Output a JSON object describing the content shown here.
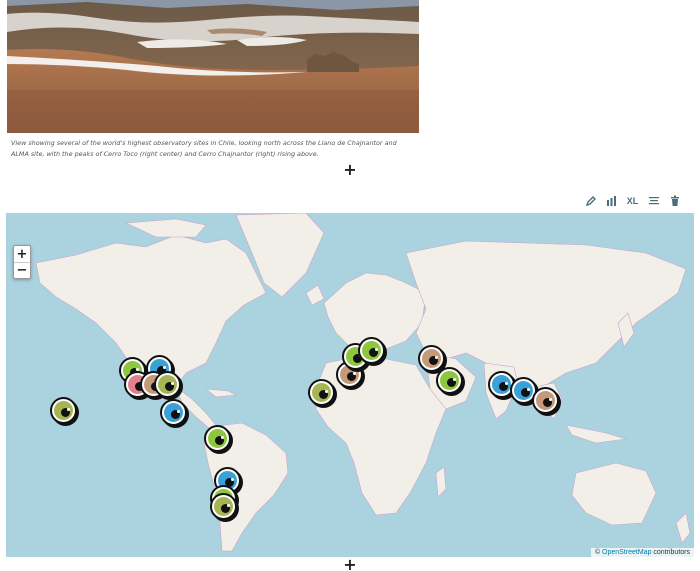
{
  "photo": {
    "caption": "View showing several of the world's highest observatory sites in Chile, looking north across the Llano de Chajnantor and ALMA site, with the peaks of Cerro Toco (right center) and Cerro Chajnantor (right) rising above."
  },
  "add_button_label": "+",
  "toolbar": {
    "tools": [
      {
        "name": "edit-icon",
        "label": ""
      },
      {
        "name": "stats-icon",
        "label": ""
      },
      {
        "name": "size-toggle",
        "label": "XL"
      },
      {
        "name": "align-icon",
        "label": ""
      },
      {
        "name": "trash-icon",
        "label": ""
      }
    ],
    "accent": "#4a6d7c"
  },
  "map": {
    "zoom_in_label": "+",
    "zoom_out_label": "−",
    "attribution_prefix": "© ",
    "attribution_link": "OpenStreetMap",
    "attribution_suffix": " contributors",
    "colors": {
      "water": "#aad3df",
      "land": "#f2efe9",
      "border": "#c9a6c9",
      "green": "#8dc63f",
      "blue": "#3aa0d8",
      "brown": "#c49a7a",
      "olive": "#a6b554",
      "pink": "#e07f8f"
    },
    "markers": [
      {
        "id": "hawaii",
        "color": "olive"
      },
      {
        "id": "california-north",
        "color": "green"
      },
      {
        "id": "arizona",
        "color": "blue"
      },
      {
        "id": "california-south",
        "color": "pink"
      },
      {
        "id": "texas",
        "color": "brown"
      },
      {
        "id": "mexico-a",
        "color": "olive"
      },
      {
        "id": "caribbean",
        "color": "blue"
      },
      {
        "id": "colombia",
        "color": "green"
      },
      {
        "id": "peru",
        "color": "blue"
      },
      {
        "id": "chile-north",
        "color": "green"
      },
      {
        "id": "chile-south",
        "color": "olive"
      },
      {
        "id": "canary-islands",
        "color": "olive"
      },
      {
        "id": "spain",
        "color": "brown"
      },
      {
        "id": "alps",
        "color": "green"
      },
      {
        "id": "germany",
        "color": "green"
      },
      {
        "id": "caucasus",
        "color": "brown"
      },
      {
        "id": "iran",
        "color": "green"
      },
      {
        "id": "india-north",
        "color": "blue"
      },
      {
        "id": "india-east",
        "color": "blue"
      },
      {
        "id": "china-south",
        "color": "brown"
      }
    ]
  }
}
